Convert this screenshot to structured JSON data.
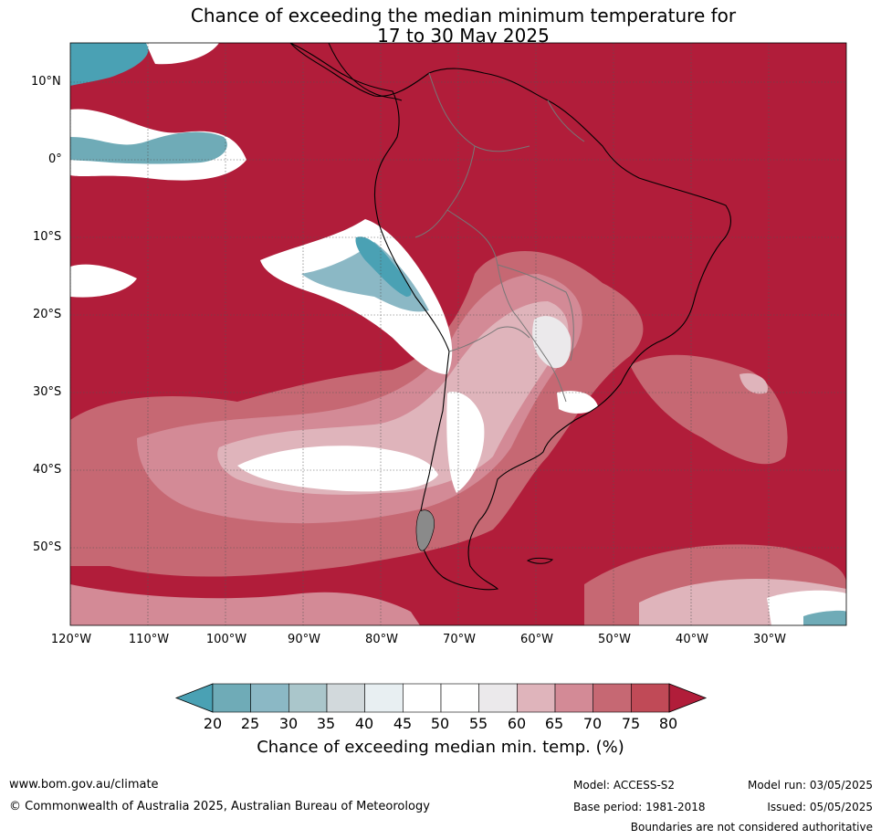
{
  "title": {
    "line1": "Chance of exceeding the median minimum temperature for",
    "line2": "17 to 30 May 2025"
  },
  "map": {
    "lat_labels": [
      "10°N",
      "0°",
      "10°S",
      "20°S",
      "30°S",
      "40°S",
      "50°S"
    ],
    "lon_labels": [
      "120°W",
      "110°W",
      "100°W",
      "90°W",
      "80°W",
      "70°W",
      "60°W",
      "50°W",
      "40°W",
      "30°W"
    ],
    "extent": {
      "lon": [
        -120,
        -20
      ],
      "lat": [
        -60,
        15
      ]
    },
    "background_color": "#b11d3a"
  },
  "colorbar": {
    "ticks": [
      "20",
      "25",
      "30",
      "35",
      "40",
      "45",
      "50",
      "55",
      "60",
      "65",
      "70",
      "75",
      "80"
    ],
    "colors": [
      "#4aa1b4",
      "#6fabb7",
      "#8bb8c5",
      "#aac6cb",
      "#d2d9dc",
      "#e8eff2",
      "#ffffff",
      "#ffffff",
      "#ebe9eb",
      "#dfb4bb",
      "#d38a96",
      "#c66873",
      "#c04a57",
      "#b11d3a"
    ],
    "title": "Chance of exceeding median min. temp. (%)"
  },
  "footer": {
    "website": "www.bom.gov.au/climate",
    "copyright": "© Commonwealth of Australia 2025, Australian Bureau of Meteorology",
    "model": "Model: ACCESS-S2",
    "base_period": "Base period: 1981-2018",
    "model_run": "Model run: 03/05/2025",
    "issued": "Issued: 05/05/2025",
    "boundaries": "Boundaries are not considered authoritative"
  }
}
